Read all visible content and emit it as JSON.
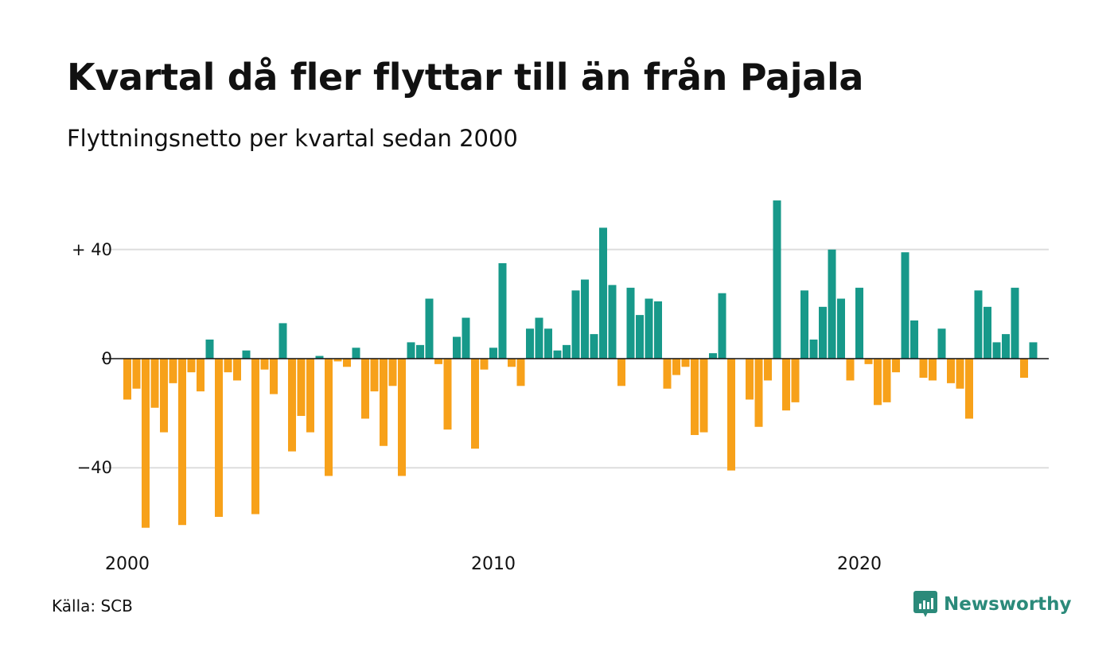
{
  "header": {
    "title": "Kvartal då fler flyttar till än från Pajala",
    "subtitle": "Flyttningsnetto per kvartal sedan 2000"
  },
  "footer": {
    "source": "Källa: SCB",
    "brand": "Newsworthy"
  },
  "colors": {
    "positive": "#17998a",
    "negative": "#f7a11a",
    "grid": "#dddddd",
    "brand": "#2b8a7a"
  },
  "chart_data": {
    "type": "bar",
    "x_start": "2000 Q1",
    "x_ticks": [
      {
        "label": "2000",
        "quarter_index": 0
      },
      {
        "label": "2010",
        "quarter_index": 40
      },
      {
        "label": "2020",
        "quarter_index": 80
      }
    ],
    "y_ticks": [
      {
        "label": "+ 40",
        "value": 40
      },
      {
        "label": "0",
        "value": 0
      },
      {
        "label": "−40",
        "value": -40
      }
    ],
    "ylim": [
      -66,
      62
    ],
    "grid": true,
    "values": [
      -15,
      -11,
      -62,
      -18,
      -27,
      -9,
      -61,
      -5,
      -12,
      7,
      -58,
      -5,
      -8,
      3,
      -57,
      -4,
      -13,
      13,
      -34,
      -21,
      -27,
      1,
      -43,
      -1,
      -3,
      4,
      -22,
      -12,
      -32,
      -10,
      -43,
      6,
      5,
      22,
      -2,
      -26,
      8,
      15,
      -33,
      -4,
      4,
      35,
      -3,
      -10,
      11,
      15,
      11,
      3,
      5,
      25,
      29,
      9,
      48,
      27,
      -10,
      26,
      16,
      22,
      21,
      -11,
      -6,
      -3,
      -28,
      -27,
      2,
      24,
      -41,
      0,
      -15,
      -25,
      -8,
      58,
      -19,
      -16,
      25,
      7,
      19,
      40,
      22,
      -8,
      26,
      -2,
      -17,
      -16,
      -5,
      39,
      14,
      -7,
      -8,
      11,
      -9,
      -11,
      -22,
      25,
      19,
      6,
      9,
      26,
      -7,
      6
    ]
  }
}
